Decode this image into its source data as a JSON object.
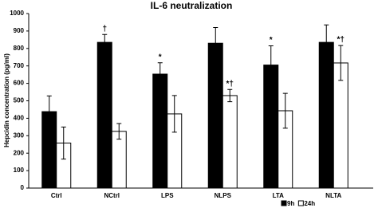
{
  "chart_data": {
    "type": "bar",
    "title": "IL-6 neutralization",
    "y_label": "Hepcidin concentration (pg/ml)",
    "categories": [
      "Ctrl",
      "NCtrl",
      "LPS",
      "NLPS",
      "LTA",
      "NLTA"
    ],
    "series": [
      {
        "name": "9h",
        "color": "#000000",
        "values": [
          438,
          835,
          653,
          830,
          705,
          835
        ],
        "errors": [
          90,
          45,
          65,
          90,
          110,
          100
        ],
        "annotations": [
          null,
          "†",
          "*",
          null,
          "*",
          null
        ]
      },
      {
        "name": "24h",
        "color": "#ffffff",
        "values": [
          258,
          325,
          425,
          530,
          443,
          717
        ],
        "errors": [
          92,
          45,
          105,
          35,
          100,
          100
        ],
        "annotations": [
          null,
          null,
          null,
          "*†",
          null,
          "*†"
        ]
      }
    ],
    "ylim": [
      0,
      1000
    ],
    "yticks": [
      0,
      100,
      200,
      300,
      400,
      500,
      600,
      700,
      800,
      900,
      1000
    ],
    "legend": "bottom-right"
  }
}
